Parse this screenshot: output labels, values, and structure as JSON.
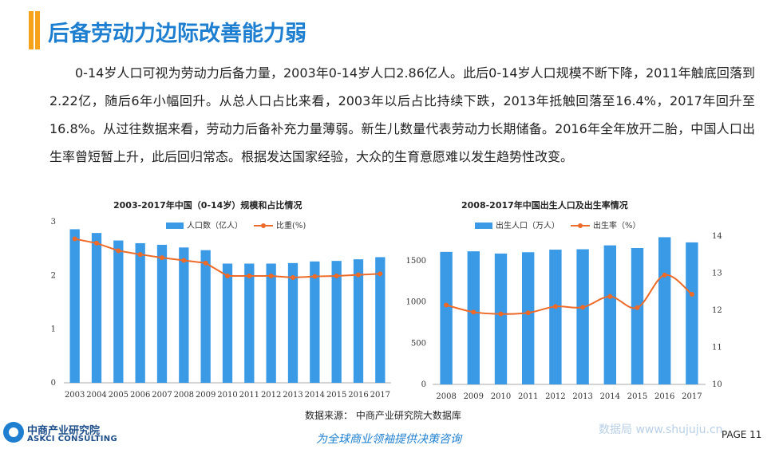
{
  "title": "后备劳动力边际改善能力弱",
  "paragraph": "0-14岁人口可视为劳动力后备力量，2003年0-14岁人口2.86亿人。此后0-14岁人口规模不断下降，2011年触底回落到2.22亿，随后6年小幅回升。从总人口占比来看，2003年以后占比持续下跌，2013年抵触回落至16.4%，2017年回升至16.8%。从过往数据来看，劳动力后备补充力量薄弱。新生儿数量代表劳动力长期储备。2016年全年放开二胎，中国人口出生率曾短暂上升，此后回归常态。根据发达国家经验，大众的生育意愿难以发生趋势性改变。",
  "source": "数据来源：  中商产业研究院大数据库",
  "slogan": "为全球商业领袖提供决策咨询",
  "logo": {
    "cn": "中商产业研究院",
    "en": "ASKCI CONSULTING"
  },
  "watermark": "数据局  www.shujuju.cn",
  "page": "PAGE  11",
  "colors": {
    "bar": "#3a9ae6",
    "line": "#ee6a28",
    "title": "#1e7fd0",
    "accent": "#f7a21b"
  },
  "chart_data": [
    {
      "type": "bar+line",
      "title": "2003-2017年中国（0-14岁）规模和占比情况",
      "categories": [
        "2003",
        "2004",
        "2005",
        "2006",
        "2007",
        "2008",
        "2009",
        "2010",
        "2011",
        "2012",
        "2013",
        "2014",
        "2015",
        "2016",
        "2017"
      ],
      "series": [
        {
          "name": "人口数（亿人）",
          "type": "bar",
          "axis": "left",
          "values": [
            2.86,
            2.79,
            2.65,
            2.6,
            2.57,
            2.52,
            2.47,
            2.22,
            2.22,
            2.22,
            2.23,
            2.26,
            2.27,
            2.3,
            2.34
          ]
        },
        {
          "name": "比重(%)",
          "type": "line",
          "axis": "left_scaled",
          "values": [
            2.68,
            2.6,
            2.46,
            2.39,
            2.33,
            2.28,
            2.23,
            1.99,
            1.99,
            1.99,
            1.96,
            1.98,
            1.99,
            2.01,
            2.03
          ]
        }
      ],
      "yticks": [
        "0",
        "1",
        "2",
        "3"
      ],
      "ylim": [
        0,
        3
      ],
      "legend": "top"
    },
    {
      "type": "bar+line",
      "title": "2008-2017年中国出生人口及出生率情况",
      "categories": [
        "2008",
        "2009",
        "2010",
        "2011",
        "2012",
        "2013",
        "2014",
        "2015",
        "2016",
        "2017"
      ],
      "series": [
        {
          "name": "出生人口（万人）",
          "type": "bar",
          "axis": "left",
          "values": [
            1608,
            1615,
            1588,
            1604,
            1635,
            1640,
            1687,
            1655,
            1786,
            1723
          ]
        },
        {
          "name": "出生率（%）",
          "type": "line",
          "axis": "right",
          "values": [
            12.14,
            11.95,
            11.9,
            11.93,
            12.1,
            12.08,
            12.37,
            12.07,
            12.95,
            12.43
          ]
        }
      ],
      "yticks_left": [
        "0",
        "500",
        "1000",
        "1500"
      ],
      "ylim_left": [
        0,
        1800
      ],
      "yticks_right": [
        "10",
        "11",
        "12",
        "13",
        "14"
      ],
      "ylim_right": [
        10,
        14
      ],
      "legend": "top"
    }
  ]
}
